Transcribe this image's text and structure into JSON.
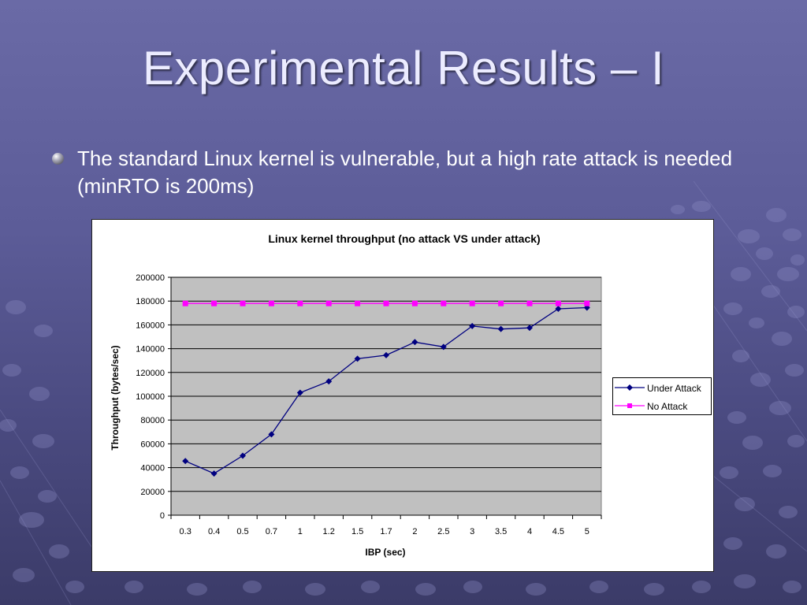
{
  "slide": {
    "title": "Experimental Results – I",
    "bullet": "The standard Linux kernel is vulnerable, but a high rate attack is needed (minRTO is 200ms)"
  },
  "colors": {
    "background_top": "#6a6aa6",
    "background_bottom": "#3b3b68",
    "plot_area": "#c0c0c0",
    "under_attack": "#000080",
    "no_attack": "#ff00ff"
  },
  "chart_data": {
    "type": "line",
    "title": "Linux kernel throughput (no attack VS under attack)",
    "xlabel": "IBP (sec)",
    "ylabel": "Throughput (bytes/sec)",
    "categories": [
      "0.3",
      "0.4",
      "0.5",
      "0.7",
      "1",
      "1.2",
      "1.5",
      "1.7",
      "2",
      "2.5",
      "3",
      "3.5",
      "4",
      "4.5",
      "5"
    ],
    "ylim": [
      0,
      200000
    ],
    "yticks": [
      "0",
      "20000",
      "40000",
      "60000",
      "80000",
      "100000",
      "120000",
      "140000",
      "160000",
      "180000",
      "200000"
    ],
    "grid": true,
    "legend_position": "right",
    "series": [
      {
        "name": "Under Attack",
        "marker": "diamond",
        "color": "#000080",
        "values": [
          45500,
          35000,
          50000,
          68000,
          103000,
          112500,
          131500,
          134500,
          145500,
          141500,
          159000,
          156500,
          157500,
          173500,
          174500
        ]
      },
      {
        "name": "No Attack",
        "marker": "square",
        "color": "#ff00ff",
        "values": [
          178000,
          178000,
          178000,
          178000,
          178000,
          178000,
          178000,
          178000,
          178000,
          178000,
          178000,
          178000,
          178000,
          178000,
          178000
        ]
      }
    ]
  }
}
